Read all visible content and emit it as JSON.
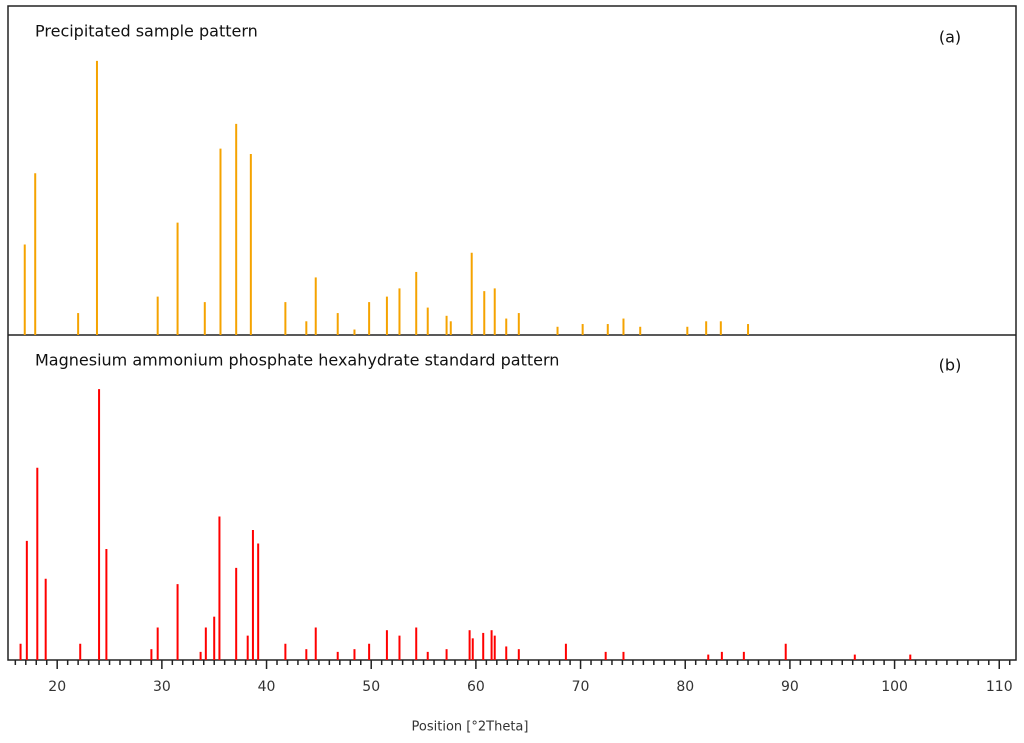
{
  "chart_data": [
    {
      "type": "stem",
      "title": "Precipitated sample pattern",
      "annotation": "(a)",
      "color": "#f5a300",
      "xlim": [
        15.3,
        111.6
      ],
      "ylim": [
        0,
        120
      ],
      "x": [
        16.9,
        17.9,
        22.0,
        23.8,
        29.6,
        31.5,
        34.1,
        35.6,
        37.1,
        38.5,
        41.8,
        43.8,
        44.7,
        46.8,
        48.4,
        49.8,
        51.5,
        52.7,
        54.3,
        55.4,
        57.2,
        57.6,
        59.6,
        60.8,
        61.8,
        62.9,
        64.1,
        67.8,
        70.2,
        72.6,
        74.1,
        75.7,
        80.2,
        82.0,
        83.4,
        86.0
      ],
      "values": [
        33,
        59,
        8,
        100,
        14,
        41,
        12,
        68,
        77,
        66,
        12,
        5,
        21,
        8,
        2,
        12,
        14,
        17,
        23,
        10,
        7,
        5,
        30,
        16,
        17,
        6,
        8,
        3,
        4,
        4,
        6,
        3,
        3,
        5,
        5,
        4
      ]
    },
    {
      "type": "stem",
      "title": "Magnesium ammonium phosphate hexahydrate standard pattern",
      "annotation": "(b)",
      "color": "#ff0000",
      "xlim": [
        15.3,
        111.6
      ],
      "ylim": [
        0,
        120
      ],
      "xlabel": "Position [°2Theta]",
      "xticks": [
        20,
        30,
        40,
        50,
        60,
        70,
        80,
        90,
        100,
        110
      ],
      "xminorticks": [
        16,
        17,
        18,
        19,
        21,
        22,
        23,
        24,
        25,
        26,
        27,
        28,
        29,
        31,
        32,
        33,
        34,
        35,
        36,
        37,
        38,
        39,
        41,
        42,
        43,
        44,
        45,
        46,
        47,
        48,
        49,
        51,
        52,
        53,
        54,
        55,
        56,
        57,
        58,
        59,
        61,
        62,
        63,
        64,
        65,
        66,
        67,
        68,
        69,
        71,
        72,
        73,
        74,
        75,
        76,
        77,
        78,
        79,
        81,
        82,
        83,
        84,
        85,
        86,
        87,
        88,
        89,
        91,
        92,
        93,
        94,
        95,
        96,
        97,
        98,
        99,
        101,
        102,
        103,
        104,
        105,
        106,
        107,
        108,
        109,
        111
      ],
      "x": [
        16.5,
        17.1,
        18.1,
        18.9,
        22.2,
        24.0,
        24.7,
        29.0,
        29.6,
        31.5,
        33.7,
        34.2,
        35.0,
        35.5,
        37.1,
        38.2,
        38.7,
        39.2,
        41.8,
        43.8,
        44.7,
        46.8,
        48.4,
        49.8,
        51.5,
        52.7,
        54.3,
        55.4,
        57.2,
        59.4,
        59.7,
        60.7,
        61.5,
        61.8,
        62.9,
        64.1,
        68.6,
        72.4,
        74.1,
        82.2,
        83.5,
        85.6,
        89.6,
        96.2,
        101.5
      ],
      "values": [
        6,
        44,
        71,
        30,
        6,
        100,
        41,
        4,
        12,
        28,
        3,
        12,
        16,
        53,
        34,
        9,
        48,
        43,
        6,
        4,
        12,
        3,
        4,
        6,
        11,
        9,
        12,
        3,
        4,
        11,
        8,
        10,
        11,
        9,
        5,
        4,
        6,
        3,
        3,
        2,
        3,
        3,
        6,
        2,
        2
      ]
    }
  ]
}
